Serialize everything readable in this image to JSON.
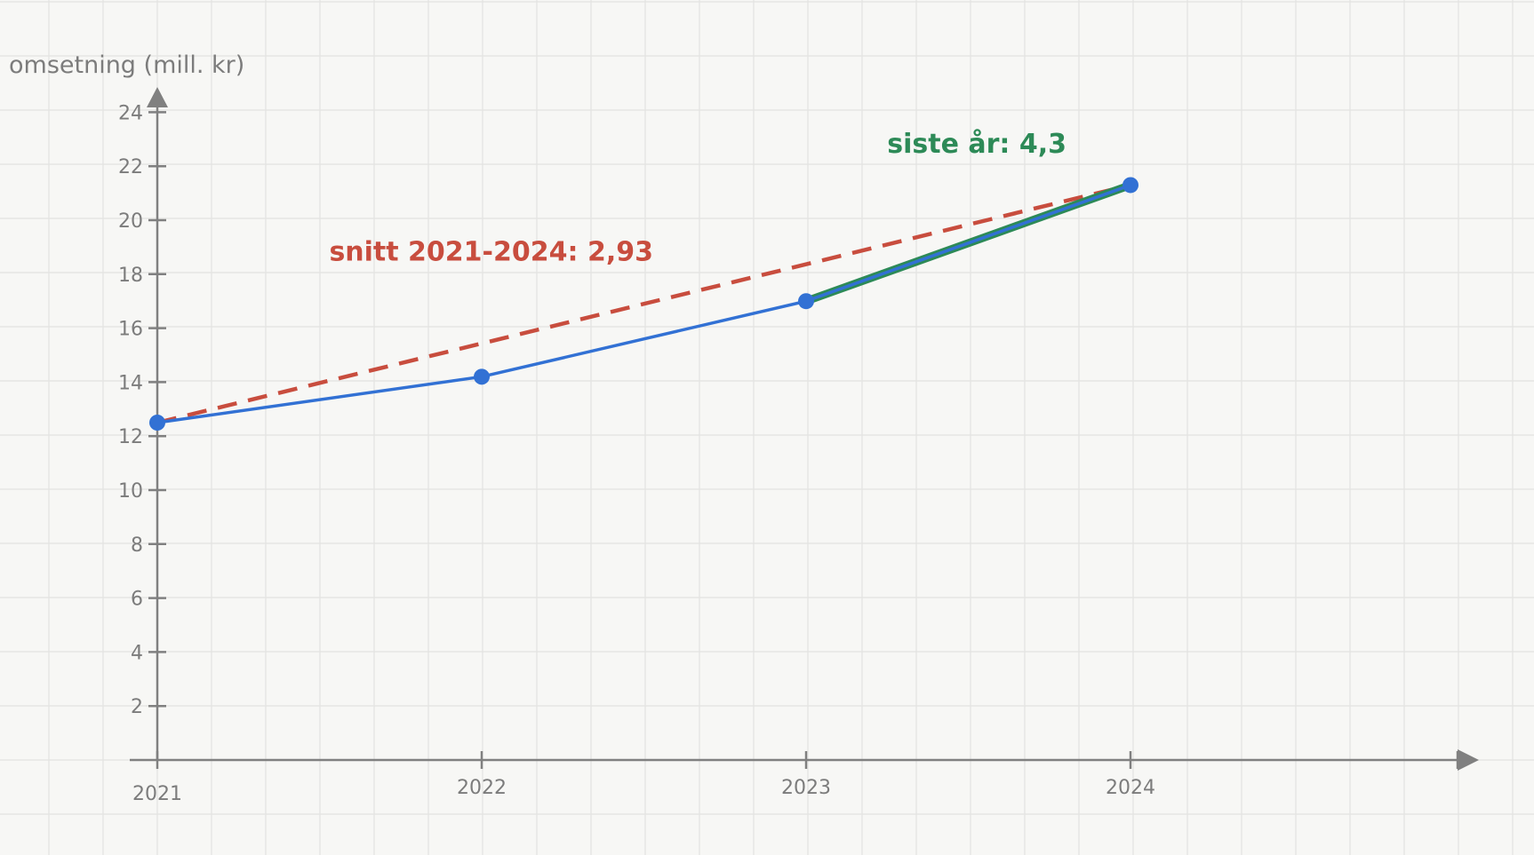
{
  "chart_data": {
    "type": "line",
    "ylabel": "omsetning (mill. kr)",
    "xlabel": "",
    "x": [
      2021,
      2022,
      2023,
      2024
    ],
    "x_ticks": [
      "2021",
      "2022",
      "2023",
      "2024"
    ],
    "xlim": [
      2021,
      2024.7
    ],
    "ylim": [
      0,
      24
    ],
    "y_ticks": [
      "2",
      "4",
      "6",
      "8",
      "10",
      "12",
      "14",
      "16",
      "18",
      "20",
      "22",
      "24"
    ],
    "grid": true,
    "series": [
      {
        "values": [
          12.5,
          14.2,
          17.0,
          21.3
        ],
        "color": "#3271d4"
      }
    ],
    "annotations": [
      {
        "kind": "average-line",
        "from": [
          2021,
          12.5
        ],
        "to": [
          2024,
          21.3
        ],
        "text": "snitt 2021-2024: 2,93",
        "color": "#c84d3e",
        "style": "dashed",
        "label_at": [
          2021.53,
          18.5
        ]
      },
      {
        "kind": "last-year-segment",
        "from": [
          2023,
          17.0
        ],
        "to": [
          2024,
          21.3
        ],
        "text": "siste år: 4,3",
        "color": "#2d8a57",
        "style": "solid",
        "label_at": [
          2023.25,
          22.5
        ]
      }
    ],
    "colors": {
      "axis": "#808080",
      "grid": "#e3e3e1",
      "text": "#7c7c7c",
      "background": "#f7f7f5"
    }
  }
}
